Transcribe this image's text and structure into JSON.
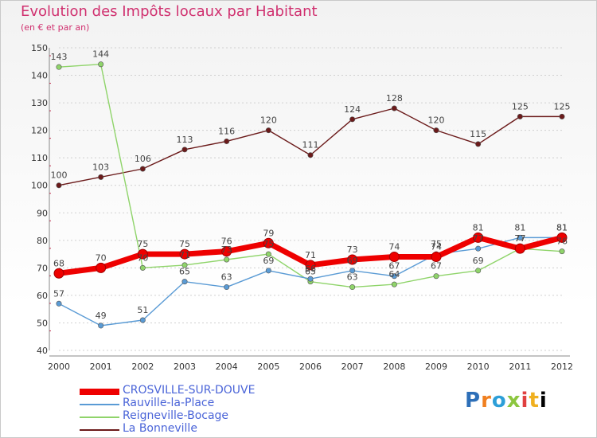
{
  "chart_data": {
    "type": "line",
    "title": "Evolution des Impôts locaux par Habitant",
    "subtitle": "(en € et par an)",
    "categories": [
      "2000",
      "2001",
      "2002",
      "2003",
      "2004",
      "2005",
      "2006",
      "2007",
      "2008",
      "2009",
      "2010",
      "2011",
      "2012"
    ],
    "y_ticks": [
      40,
      50,
      60,
      70,
      80,
      90,
      100,
      110,
      120,
      130,
      140,
      150
    ],
    "ylim": [
      40,
      150
    ],
    "grid": "horizontal dotted",
    "series": [
      {
        "name": "CROSVILLE-SUR-DOUVE",
        "color": "#ee0000",
        "values": [
          68,
          70,
          75,
          75,
          76,
          79,
          71,
          73,
          74,
          74,
          81,
          77,
          81
        ]
      },
      {
        "name": "Rauville-la-Place",
        "color": "#5a9bd5",
        "values": [
          57,
          49,
          51,
          65,
          63,
          69,
          66,
          69,
          67,
          75,
          77,
          81,
          81
        ]
      },
      {
        "name": "Reigneville-Bocage",
        "color": "#8fd46a",
        "values": [
          143,
          144,
          70,
          71,
          73,
          75,
          65,
          63,
          64,
          67,
          69,
          77,
          76
        ]
      },
      {
        "name": "La Bonneville",
        "color": "#6b1a1a",
        "values": [
          100,
          103,
          106,
          113,
          116,
          120,
          111,
          124,
          128,
          120,
          115,
          125,
          125
        ]
      }
    ]
  },
  "legend": {
    "items": [
      "CROSVILLE-SUR-DOUVE",
      "Rauville-la-Place",
      "Reigneville-Bocage",
      "La Bonneville"
    ]
  },
  "logo": {
    "letters": [
      "P",
      "r",
      "o",
      "x",
      "i",
      "t",
      "i"
    ]
  }
}
